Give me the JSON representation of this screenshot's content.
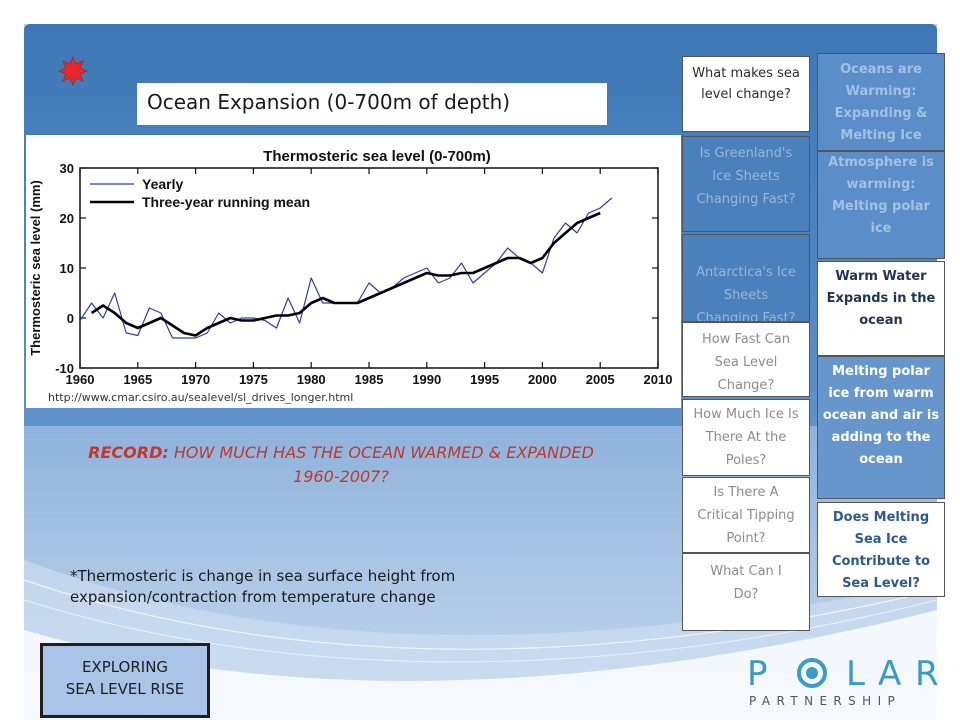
{
  "slide": {
    "title": "Ocean Expansion (0-700m of depth)",
    "source_url": "http://www.cmar.csiro.au/sealevel/sl_drives_longer.html",
    "record_prefix": "RECORD:",
    "record_text": " HOW MUCH HAS THE OCEAN WARMED & EXPANDED 1960-2007?",
    "footnote": "*Thermosteric is change in sea surface height from expansion/contraction from temperature change",
    "explore_line1": "EXPLORING",
    "explore_line2": "SEA LEVEL RISE"
  },
  "nav": {
    "items": [
      {
        "label": "What makes sea level change?"
      },
      {
        "label": "Is Greenland's Ice Sheets Changing Fast?"
      },
      {
        "label": "Antarctica's Ice Sheets Changing Fast?"
      },
      {
        "label": "How Fast Can Sea Level Change?"
      },
      {
        "label": "How Much Ice Is There At the Poles?"
      },
      {
        "label": "Is There A Critical Tipping Point?"
      },
      {
        "label": "What Can I Do?"
      }
    ]
  },
  "side": {
    "items": [
      {
        "label": "Oceans are Warming: Expanding & Melting Ice"
      },
      {
        "label": "Atmosphere is warming: Melting polar ice"
      },
      {
        "label": "Warm Water Expands in the ocean"
      },
      {
        "label": "Melting polar ice from warm ocean and air is adding to the ocean"
      },
      {
        "label": "Does Melting Sea Ice Contribute to Sea Level?"
      }
    ]
  },
  "logo": {
    "word1": "POLAR",
    "word2": "PARTNERSHIP"
  },
  "colors": {
    "accent_red": "#c0392b",
    "slide_blue": "#3d77b5",
    "yearly_line": "#2f3fa0",
    "running_mean_line": "#000000",
    "logo_blue": "#3a9bc7",
    "logo_grey": "#555555"
  },
  "chart_data": {
    "type": "line",
    "title": "Thermosteric sea level (0-700m)",
    "xlabel": "",
    "ylabel": "Thermosteric sea level (mm)",
    "xlim": [
      1960,
      2010
    ],
    "ylim": [
      -10,
      30
    ],
    "xticks": [
      1960,
      1965,
      1970,
      1975,
      1980,
      1985,
      1990,
      1995,
      2000,
      2005,
      2010
    ],
    "yticks": [
      -10,
      0,
      10,
      20,
      30
    ],
    "grid": false,
    "legend_position": "top-left",
    "series": [
      {
        "name": "Yearly",
        "color": "#2f3fa0",
        "x": [
          1960,
          1961,
          1962,
          1963,
          1964,
          1965,
          1966,
          1967,
          1968,
          1969,
          1970,
          1971,
          1972,
          1973,
          1974,
          1975,
          1976,
          1977,
          1978,
          1979,
          1980,
          1981,
          1982,
          1983,
          1984,
          1985,
          1986,
          1987,
          1988,
          1989,
          1990,
          1991,
          1992,
          1993,
          1994,
          1995,
          1996,
          1997,
          1998,
          1999,
          2000,
          2001,
          2002,
          2003,
          2004,
          2005,
          2006
        ],
        "y": [
          -0.5,
          3,
          0,
          5,
          -3,
          -3.5,
          2,
          1,
          -4,
          -4,
          -4,
          -3,
          1,
          -1,
          0,
          0,
          -0.5,
          -2,
          4,
          -1,
          8,
          3,
          3,
          3,
          3,
          7,
          5,
          6,
          8,
          9,
          10,
          7,
          8,
          11,
          7,
          9,
          11,
          14,
          12,
          11,
          9,
          16,
          19,
          17,
          21,
          22,
          24
        ]
      },
      {
        "name": "Three-year running mean",
        "color": "#000000",
        "x": [
          1961,
          1962,
          1963,
          1964,
          1965,
          1966,
          1967,
          1968,
          1969,
          1970,
          1971,
          1972,
          1973,
          1974,
          1975,
          1976,
          1977,
          1978,
          1979,
          1980,
          1981,
          1982,
          1983,
          1984,
          1985,
          1986,
          1987,
          1988,
          1989,
          1990,
          1991,
          1992,
          1993,
          1994,
          1995,
          1996,
          1997,
          1998,
          1999,
          2000,
          2001,
          2002,
          2003,
          2004,
          2005
        ],
        "y": [
          1,
          2.5,
          1,
          -1,
          -2,
          -1,
          0,
          -1.5,
          -3,
          -3.5,
          -2,
          -1,
          0,
          -0.5,
          -0.5,
          0,
          0.5,
          0.5,
          1,
          3,
          4,
          3,
          3,
          3,
          4,
          5,
          6,
          7,
          8,
          9,
          8.5,
          8.5,
          9,
          9,
          10,
          11,
          12,
          12,
          11,
          12,
          15,
          17,
          19,
          20,
          21
        ]
      }
    ]
  }
}
